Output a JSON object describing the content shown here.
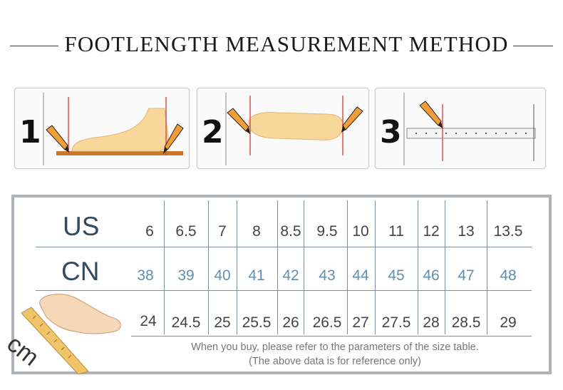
{
  "title": "FOOTLENGTH MEASUREMENT METHOD",
  "steps": [
    {
      "number": "1"
    },
    {
      "number": "2"
    },
    {
      "number": "3"
    }
  ],
  "table": {
    "us_label": "US",
    "cn_label": "CN",
    "cm_label": "cm",
    "us": [
      "6",
      "6.5",
      "7",
      "8",
      "8.5",
      "9.5",
      "10",
      "11",
      "12",
      "13",
      "13.5"
    ],
    "cn": [
      "38",
      "39",
      "40",
      "41",
      "42",
      "43",
      "44",
      "45",
      "46",
      "47",
      "48"
    ],
    "cm": [
      "24",
      "24.5",
      "25",
      "25.5",
      "26",
      "26.5",
      "27",
      "27.5",
      "28",
      "28.5",
      "29"
    ]
  },
  "note_line1": "When you buy, please refer to the parameters of the size table.",
  "note_line2": "(The above data is for reference only)",
  "colors": {
    "pencil": "#f29d38",
    "foot": "#f7d79a",
    "guide_line": "#d9534f",
    "cn_text": "#5f8fb0",
    "frame_border": "#aeb3b8"
  }
}
